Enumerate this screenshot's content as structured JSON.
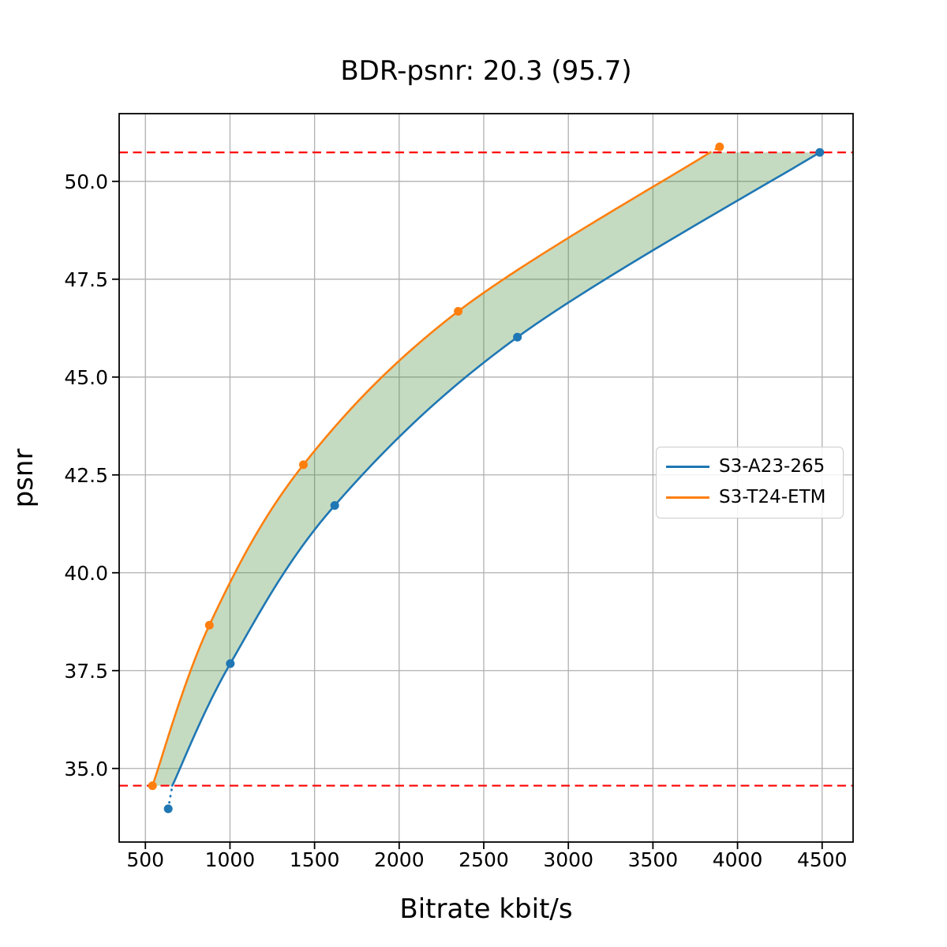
{
  "figure": {
    "background": "#ffffff"
  },
  "chart_data": {
    "type": "line",
    "title": "BDR-psnr: 20.3 (95.7)",
    "xlabel": "Bitrate kbit/s",
    "ylabel": "psnr",
    "xlim": [
      345,
      4683
    ],
    "ylim": [
      33.12,
      51.73
    ],
    "xticks": [
      500,
      1000,
      1500,
      2000,
      2500,
      3000,
      3500,
      4000,
      4500
    ],
    "yticks": [
      35.0,
      37.5,
      40.0,
      42.5,
      45.0,
      47.5,
      50.0
    ],
    "grid": true,
    "legend": {
      "position": "center-right",
      "entries": [
        "S3-A23-265",
        "S3-T24-ETM"
      ]
    },
    "series": [
      {
        "name": "S3-A23-265",
        "color": "#1f77b4",
        "points": [
          [
            635,
            33.97
          ],
          [
            1002,
            37.68
          ],
          [
            1619,
            41.72
          ],
          [
            2699,
            46.02
          ],
          [
            4486,
            50.74
          ]
        ],
        "solid": [
          [
            659,
            34.56
          ],
          [
            1002,
            37.68
          ],
          [
            1619,
            41.72
          ],
          [
            2699,
            46.02
          ],
          [
            4486,
            50.74
          ]
        ],
        "dotted": [
          [
            635,
            33.97
          ],
          [
            659,
            34.56
          ]
        ]
      },
      {
        "name": "S3-T24-ETM",
        "color": "#ff7f0e",
        "points": [
          [
            542,
            34.56
          ],
          [
            878,
            38.66
          ],
          [
            1434,
            42.76
          ],
          [
            2349,
            46.68
          ],
          [
            3894,
            50.88
          ]
        ],
        "solid": [
          [
            542,
            34.56
          ],
          [
            878,
            38.66
          ],
          [
            1434,
            42.76
          ],
          [
            2349,
            46.68
          ],
          [
            3838,
            50.74
          ]
        ],
        "dotted": [
          [
            3838,
            50.74
          ],
          [
            3894,
            50.88
          ]
        ]
      }
    ],
    "hlines": [
      {
        "y": 34.56,
        "color": "#ff0000",
        "style": "dashed"
      },
      {
        "y": 50.74,
        "color": "#ff0000",
        "style": "dashed"
      }
    ],
    "band": {
      "lower_series": 0,
      "upper_series": 1,
      "color": "#4a8f3f",
      "opacity": 0.32
    },
    "colors": {
      "grid": "#b0b0b0",
      "spine": "#000000",
      "background": "#ffffff"
    }
  }
}
